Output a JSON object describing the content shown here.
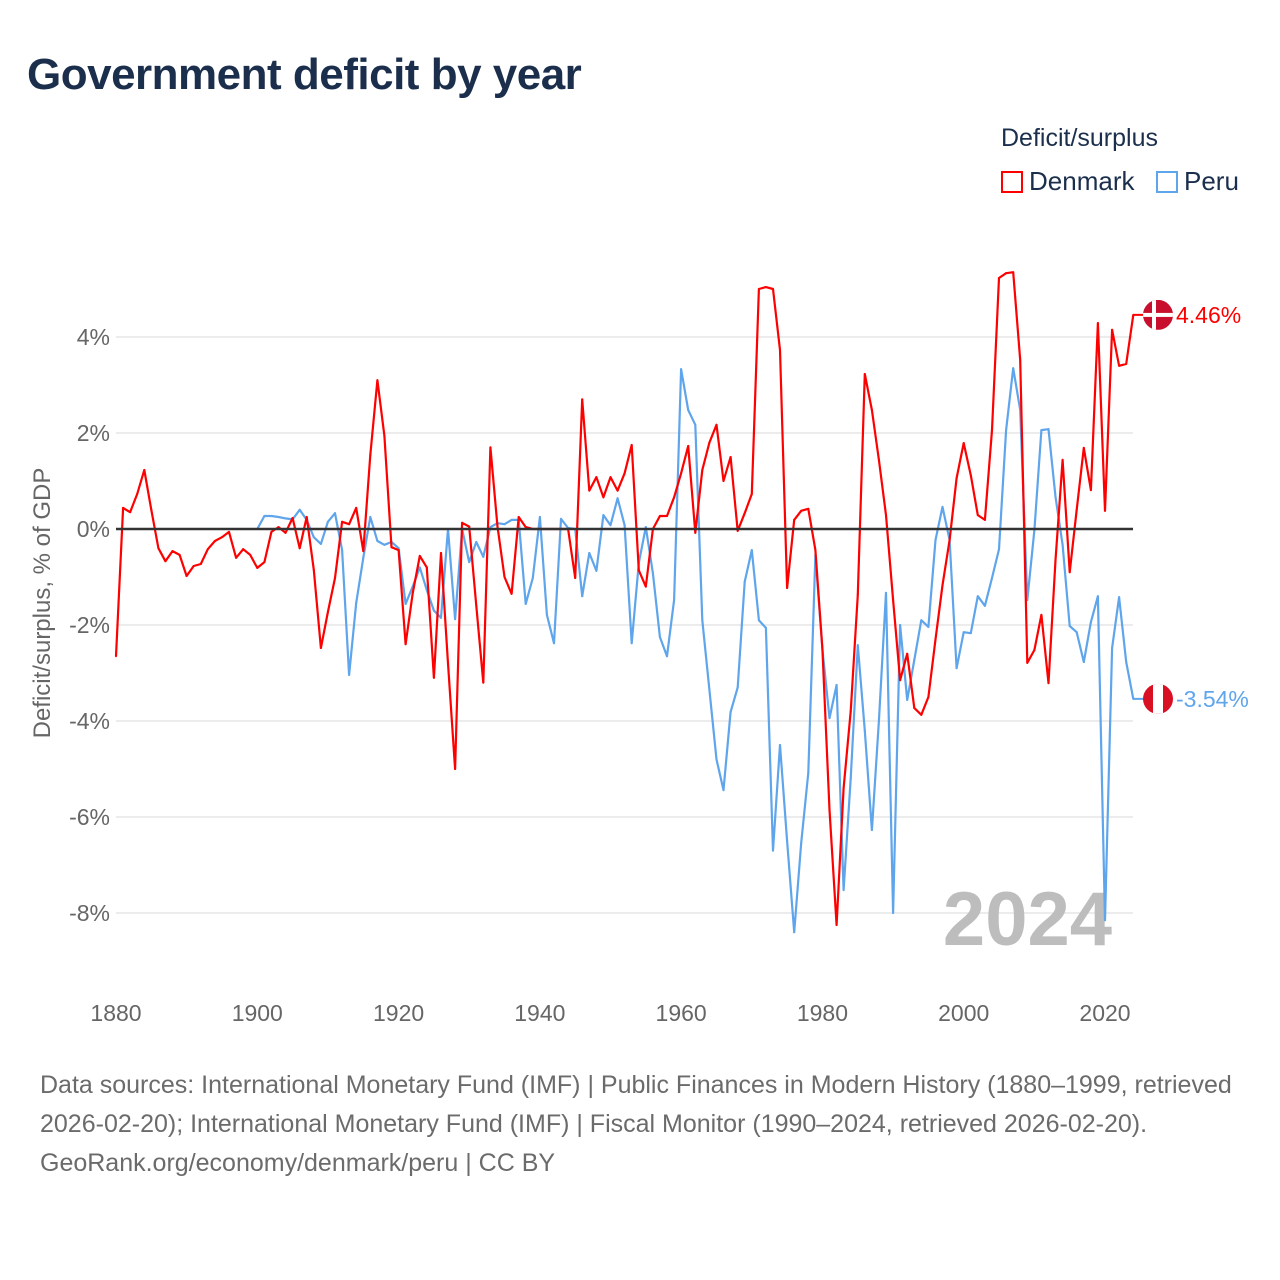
{
  "title": "Government deficit by year",
  "legend": {
    "title": "Deficit/surplus",
    "items": [
      {
        "name": "Denmark",
        "color": "#ff0000"
      },
      {
        "name": "Peru",
        "color": "#5fa5ec"
      }
    ]
  },
  "footer": {
    "sources": "Data sources: International Monetary Fund (IMF) | Public Finances in Modern History (1880–1999, retrieved 2026-02-20); International Monetary Fund (IMF) | Fiscal Monitor (1990–2024, retrieved 2026-02-20).",
    "credit": "GeoRank.org/economy/denmark/peru | CC BY"
  },
  "chart_data": {
    "type": "line",
    "title": "Government deficit by year",
    "xlabel": "",
    "ylabel": "Deficit/surplus, % of GDP",
    "xlim": [
      1880,
      2024
    ],
    "ylim": [
      -9.5,
      5.5
    ],
    "grid": true,
    "legend_position": "top-right",
    "current_year_label": "2024",
    "x_ticks": [
      1880,
      1900,
      1920,
      1940,
      1960,
      1980,
      2000,
      2020
    ],
    "x_tick_labels": [
      "1880",
      "1900",
      "1920",
      "1940",
      "1960",
      "1980",
      "2000",
      "2020"
    ],
    "y_ticks": [
      4,
      2,
      0,
      -2,
      -4,
      -6,
      -8
    ],
    "y_tick_labels": [
      "4%",
      "2%",
      "0%",
      "-2%",
      "-4%",
      "-6%",
      "-8%"
    ],
    "series": [
      {
        "name": "Denmark",
        "color": "#ff0000",
        "start_year": 1880,
        "end_label": "4.46%",
        "values": [
          -2.65,
          0.44,
          0.35,
          0.73,
          1.23,
          0.4,
          -0.4,
          -0.67,
          -0.46,
          -0.54,
          -0.98,
          -0.77,
          -0.73,
          -0.42,
          -0.25,
          -0.17,
          -0.06,
          -0.6,
          -0.42,
          -0.54,
          -0.81,
          -0.69,
          -0.06,
          0.04,
          -0.08,
          0.23,
          -0.4,
          0.25,
          -0.85,
          -2.48,
          -1.73,
          -1.02,
          0.15,
          0.1,
          0.44,
          -0.46,
          1.54,
          3.1,
          1.94,
          -0.38,
          -0.44,
          -2.4,
          -1.34,
          -0.56,
          -0.8,
          -3.1,
          -0.5,
          -2.8,
          -5.0,
          0.13,
          0.05,
          -1.6,
          -3.2,
          1.7,
          0.05,
          -1.0,
          -1.35,
          0.25,
          0.04,
          0.0,
          0.0,
          0.0,
          0.0,
          0.0,
          0.0,
          -1.02,
          2.7,
          0.8,
          1.08,
          0.66,
          1.08,
          0.8,
          1.16,
          1.75,
          -0.86,
          -1.2,
          0.0,
          0.27,
          0.27,
          0.66,
          1.16,
          1.73,
          -0.08,
          1.23,
          1.8,
          2.17,
          1.0,
          1.5,
          -0.04,
          0.33,
          0.73,
          5.0,
          5.04,
          5.0,
          3.73,
          -1.23,
          0.19,
          0.38,
          0.42,
          -0.44,
          -2.5,
          -5.85,
          -8.25,
          -5.4,
          -3.8,
          -1.37,
          3.23,
          2.48,
          1.44,
          0.29,
          -1.48,
          -3.15,
          -2.6,
          -3.73,
          -3.87,
          -3.5,
          -2.3,
          -1.17,
          -0.23,
          1.06,
          1.79,
          1.12,
          0.29,
          0.19,
          2.06,
          5.23,
          5.33,
          5.35,
          3.52,
          -2.79,
          -2.52,
          -1.79,
          -3.21,
          -0.65,
          1.44,
          -0.9,
          0.4,
          1.69,
          0.81,
          4.29,
          0.38,
          4.15,
          3.4,
          3.44,
          4.46
        ]
      },
      {
        "name": "Peru",
        "color": "#5fa5ec",
        "start_year": 1900,
        "end_label": "-3.54%",
        "values": [
          0.0,
          0.27,
          0.27,
          0.25,
          0.22,
          0.2,
          0.4,
          0.19,
          -0.17,
          -0.31,
          0.15,
          0.33,
          -0.44,
          -3.04,
          -1.54,
          -0.6,
          0.25,
          -0.25,
          -0.33,
          -0.27,
          -0.4,
          -1.56,
          -1.2,
          -0.8,
          -1.27,
          -1.7,
          -1.85,
          0.0,
          -1.88,
          0.0,
          -0.69,
          -0.27,
          -0.58,
          0.04,
          0.12,
          0.1,
          0.19,
          0.19,
          -1.56,
          -1.02,
          0.25,
          -1.79,
          -2.38,
          0.21,
          0.02,
          0.0,
          -1.4,
          -0.5,
          -0.87,
          0.29,
          0.08,
          0.64,
          0.08,
          -2.38,
          -0.71,
          0.04,
          -0.92,
          -2.25,
          -2.65,
          -1.48,
          3.33,
          2.48,
          2.17,
          -1.9,
          -3.35,
          -4.8,
          -5.44,
          -3.81,
          -3.3,
          -1.1,
          -0.44,
          -1.9,
          -2.06,
          -6.7,
          -4.5,
          -6.5,
          -8.4,
          -6.54,
          -5.08,
          -0.54,
          -2.5,
          -3.94,
          -3.25,
          -7.52,
          -5.2,
          -2.42,
          -4.2,
          -6.27,
          -4.0,
          -1.33,
          -8.0,
          -2.0,
          -3.56,
          -2.73,
          -1.9,
          -2.04,
          -0.23,
          0.46,
          -0.23,
          -2.9,
          -2.15,
          -2.17,
          -1.4,
          -1.6,
          -1.02,
          -0.42,
          2.06,
          3.35,
          2.48,
          -1.48,
          -0.02,
          2.06,
          2.08,
          0.67,
          -0.33,
          -2.02,
          -2.15,
          -2.77,
          -1.94,
          -1.4,
          -8.15,
          -2.48,
          -1.42,
          -2.77,
          -3.54
        ]
      }
    ]
  }
}
